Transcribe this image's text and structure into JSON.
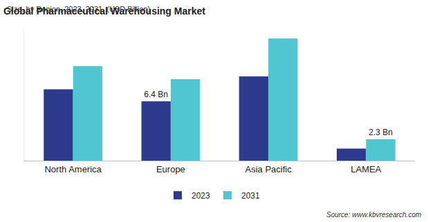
{
  "chart_data": {
    "type": "bar",
    "title": "Global Pharmaceutical Warehousing Market",
    "subtitle": "Size, by Region, 2023, 2031, (USD Billion)",
    "source": "Source: www.kbvresearch.com",
    "categories": [
      "North America",
      "Europe",
      "Asia Pacific",
      "LAMEA"
    ],
    "series": [
      {
        "name": "2023",
        "color": "#2e3a8c",
        "values": [
          7.7,
          6.4,
          9.1,
          1.3
        ],
        "value_labels": [
          null,
          "6.4 Bn",
          null,
          null
        ]
      },
      {
        "name": "2031",
        "color": "#4fc6d0",
        "values": [
          10.2,
          8.8,
          13.2,
          2.3
        ],
        "value_labels": [
          null,
          null,
          null,
          "2.3 Bn"
        ]
      }
    ],
    "ylim": [
      0,
      14
    ],
    "tick_labels": "x",
    "grid": false,
    "legend": "bottom",
    "data_labels": true
  }
}
